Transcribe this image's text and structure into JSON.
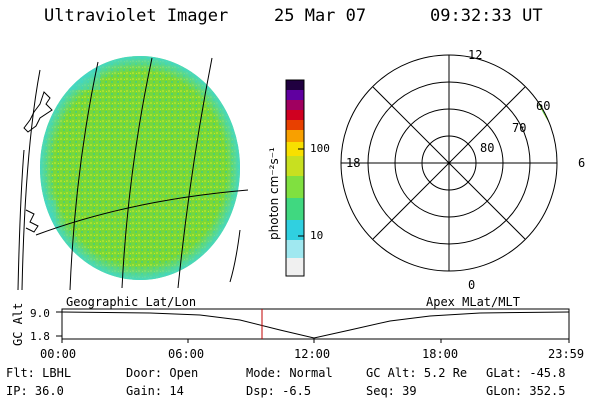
{
  "header": {
    "title": "Ultraviolet Imager",
    "date": "25 Mar 07",
    "time": "09:32:33 UT"
  },
  "colorbar": {
    "unit_label": "photon cm⁻²s⁻¹",
    "tick_labels": [
      "100",
      "10"
    ],
    "ticks": [
      100,
      10
    ],
    "scale": "log",
    "range": [
      2.5,
      700
    ],
    "colors": [
      "#f0f0f0",
      "#a0e8f0",
      "#30d0e0",
      "#40d880",
      "#80e040",
      "#c8e020",
      "#f8e000",
      "#f8a000",
      "#e84000",
      "#d00020",
      "#a00060",
      "#6000a0",
      "#200040"
    ]
  },
  "polar_plot": {
    "lat_labels": [
      "80",
      "70",
      "60"
    ],
    "mlt_labels": {
      "top": "12",
      "left": "18",
      "right": "6",
      "bottom": "0"
    }
  },
  "panel_labels": {
    "left": "Geographic Lat/Lon",
    "right": "Apex MLat/MLT"
  },
  "altitude_plot": {
    "ylabel": "GC Alt",
    "y_ticks": [
      "9.0",
      "1.8"
    ],
    "x_ticks": [
      "00:00",
      "06:00",
      "12:00",
      "18:00",
      "23:59"
    ],
    "marker_time": "09:32",
    "colors": {
      "curve": "#000000",
      "marker": "#c00000"
    }
  },
  "status": {
    "row1": [
      {
        "label": "Flt:",
        "value": "LBHL"
      },
      {
        "label": "Door:",
        "value": "Open"
      },
      {
        "label": "Mode:",
        "value": "Normal"
      },
      {
        "label": "GC Alt:",
        "value": "5.2 Re"
      },
      {
        "label": "GLat:",
        "value": "-45.8"
      }
    ],
    "row2": [
      {
        "label": "IP:",
        "value": "36.0"
      },
      {
        "label": "Gain:",
        "value": "14"
      },
      {
        "label": "Dsp:",
        "value": "-6.5"
      },
      {
        "label": "Seq:",
        "value": "39"
      },
      {
        "label": "GLon:",
        "value": "352.5"
      }
    ]
  }
}
